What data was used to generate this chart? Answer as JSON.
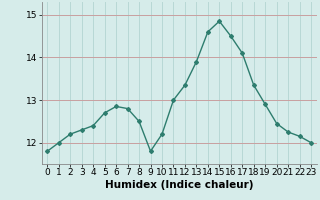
{
  "x": [
    0,
    1,
    2,
    3,
    4,
    5,
    6,
    7,
    8,
    9,
    10,
    11,
    12,
    13,
    14,
    15,
    16,
    17,
    18,
    19,
    20,
    21,
    22,
    23
  ],
  "y": [
    11.8,
    12.0,
    12.2,
    12.3,
    12.4,
    12.7,
    12.85,
    12.8,
    12.5,
    11.8,
    12.2,
    13.0,
    13.35,
    13.9,
    14.6,
    14.85,
    14.5,
    14.1,
    13.35,
    12.9,
    12.45,
    12.25,
    12.15,
    12.0
  ],
  "line_color": "#2e7d6e",
  "marker": "D",
  "markersize": 2,
  "linewidth": 1.0,
  "background_color": "#d6ecea",
  "grid_color": "#b8d8d5",
  "xlabel": "Humidex (Indice chaleur)",
  "xlabel_fontsize": 7.5,
  "ylim": [
    11.5,
    15.3
  ],
  "yticks": [
    12,
    13,
    14,
    15
  ],
  "xticks": [
    0,
    1,
    2,
    3,
    4,
    5,
    6,
    7,
    8,
    9,
    10,
    11,
    12,
    13,
    14,
    15,
    16,
    17,
    18,
    19,
    20,
    21,
    22,
    23
  ],
  "tick_fontsize": 6.5
}
